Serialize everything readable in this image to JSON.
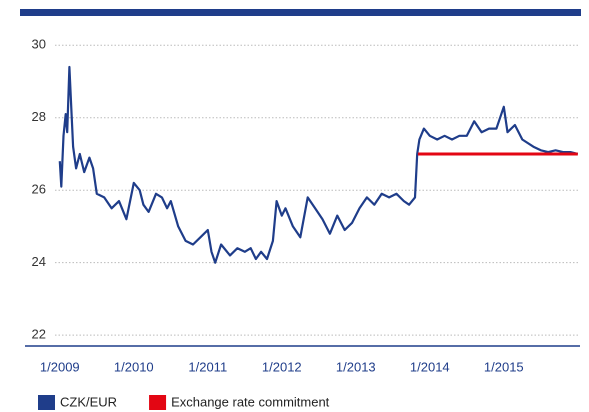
{
  "chart_data": {
    "type": "line",
    "xlim": [
      2008.53,
      2016.03
    ],
    "xticks": [
      {
        "value": 2009,
        "label": "1/2009"
      },
      {
        "value": 2010,
        "label": "1/2010"
      },
      {
        "value": 2011,
        "label": "1/2011"
      },
      {
        "value": 2012,
        "label": "1/2012"
      },
      {
        "value": 2013,
        "label": "1/2013"
      },
      {
        "value": 2014,
        "label": "1/2014"
      },
      {
        "value": 2015,
        "label": "1/2015"
      }
    ],
    "ylim": [
      21.7,
      30.2
    ],
    "yticks": [
      22,
      24,
      26,
      28,
      30
    ],
    "grid": true,
    "legend": "bottom",
    "series": [
      {
        "name": "CZK/EUR",
        "color": "#1f3d8a",
        "x": [
          2009.0,
          2009.02,
          2009.05,
          2009.08,
          2009.1,
          2009.13,
          2009.15,
          2009.18,
          2009.22,
          2009.27,
          2009.33,
          2009.4,
          2009.45,
          2009.5,
          2009.6,
          2009.7,
          2009.8,
          2009.9,
          2010.0,
          2010.08,
          2010.13,
          2010.2,
          2010.3,
          2010.38,
          2010.45,
          2010.5,
          2010.6,
          2010.7,
          2010.8,
          2010.9,
          2011.0,
          2011.05,
          2011.1,
          2011.18,
          2011.3,
          2011.4,
          2011.5,
          2011.58,
          2011.65,
          2011.72,
          2011.8,
          2011.88,
          2011.93,
          2012.0,
          2012.05,
          2012.15,
          2012.25,
          2012.35,
          2012.45,
          2012.55,
          2012.65,
          2012.75,
          2012.85,
          2012.95,
          2013.05,
          2013.15,
          2013.25,
          2013.35,
          2013.45,
          2013.55,
          2013.65,
          2013.72,
          2013.8,
          2013.83,
          2013.86,
          2013.92,
          2014.0,
          2014.1,
          2014.2,
          2014.3,
          2014.4,
          2014.5,
          2014.6,
          2014.7,
          2014.8,
          2014.9,
          2015.0,
          2015.05,
          2015.15,
          2015.25,
          2015.4,
          2015.5,
          2015.6,
          2015.7,
          2015.8,
          2015.9,
          2016.0
        ],
        "values": [
          26.8,
          26.1,
          27.5,
          28.1,
          27.6,
          29.4,
          28.5,
          27.2,
          26.6,
          27.0,
          26.5,
          26.9,
          26.6,
          25.9,
          25.8,
          25.5,
          25.7,
          25.2,
          26.2,
          26.0,
          25.6,
          25.4,
          25.9,
          25.8,
          25.5,
          25.7,
          25.0,
          24.6,
          24.5,
          24.7,
          24.9,
          24.3,
          24.0,
          24.5,
          24.2,
          24.4,
          24.3,
          24.4,
          24.1,
          24.3,
          24.1,
          24.6,
          25.7,
          25.3,
          25.5,
          25.0,
          24.7,
          25.8,
          25.5,
          25.2,
          24.8,
          25.3,
          24.9,
          25.1,
          25.5,
          25.8,
          25.6,
          25.9,
          25.8,
          25.9,
          25.7,
          25.6,
          25.8,
          27.0,
          27.4,
          27.7,
          27.5,
          27.4,
          27.5,
          27.4,
          27.5,
          27.5,
          27.9,
          27.6,
          27.7,
          27.7,
          28.3,
          27.6,
          27.8,
          27.4,
          27.2,
          27.1,
          27.05,
          27.1,
          27.05,
          27.05,
          27.0
        ]
      },
      {
        "name": "Exchange rate commitment",
        "color": "#e30613",
        "x": [
          2013.84,
          2016.0
        ],
        "values": [
          27,
          27
        ]
      }
    ]
  }
}
